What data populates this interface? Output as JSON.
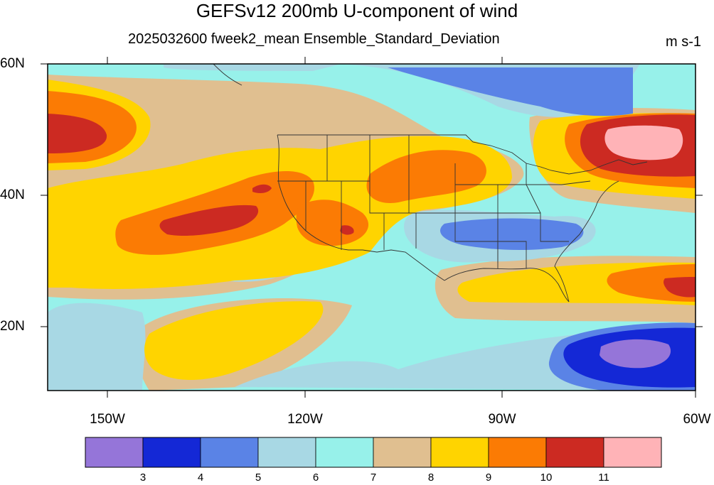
{
  "title": "GEFSv12 200mb U-component of wind",
  "subtitle": "2025032600 fweek2_mean Ensemble_Standard_Deviation",
  "units": "m s-1",
  "lat_labels": [
    "60N",
    "40N",
    "20N"
  ],
  "lon_labels": [
    "150W",
    "120W",
    "90W",
    "60W"
  ],
  "colorbar": {
    "colors": [
      "#9575d9",
      "#1428d6",
      "#5a83e6",
      "#a8d8e4",
      "#97f1ea",
      "#e0bf90",
      "#ffd400",
      "#fb7b04",
      "#cc2a22",
      "#ffb3b7"
    ],
    "labels": [
      "3",
      "4",
      "5",
      "6",
      "7",
      "8",
      "9",
      "10",
      "11"
    ]
  }
}
